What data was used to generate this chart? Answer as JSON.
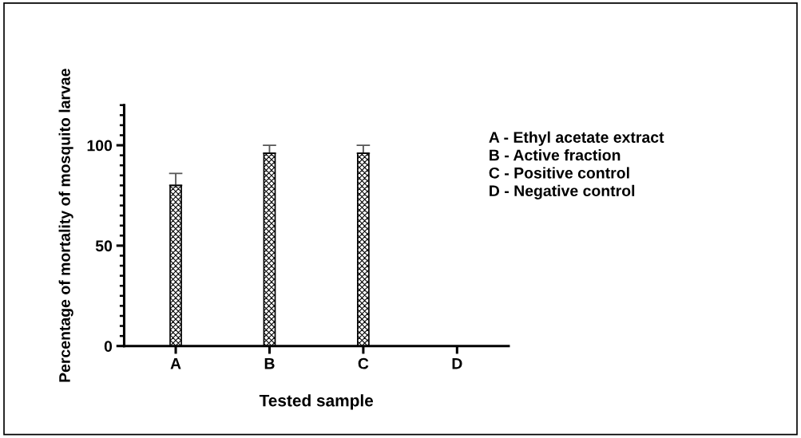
{
  "chart_data": {
    "type": "bar",
    "ylabel": "Percentage of mortality of mosquito larvae",
    "xlabel": "Tested sample",
    "categories": [
      "A",
      "B",
      "C",
      "D"
    ],
    "values": [
      80,
      96,
      96,
      0
    ],
    "errors": [
      [
        80,
        86
      ],
      [
        96,
        100
      ],
      [
        96,
        100
      ],
      null
    ],
    "color": "#000000",
    "ylim": [
      0,
      120
    ],
    "yticks": [
      0,
      50,
      100
    ],
    "grid": false,
    "annotations": [
      "A - Ethyl acetate extract\nB - Active fraction\nC - Positive control\nD - Negative control"
    ]
  }
}
